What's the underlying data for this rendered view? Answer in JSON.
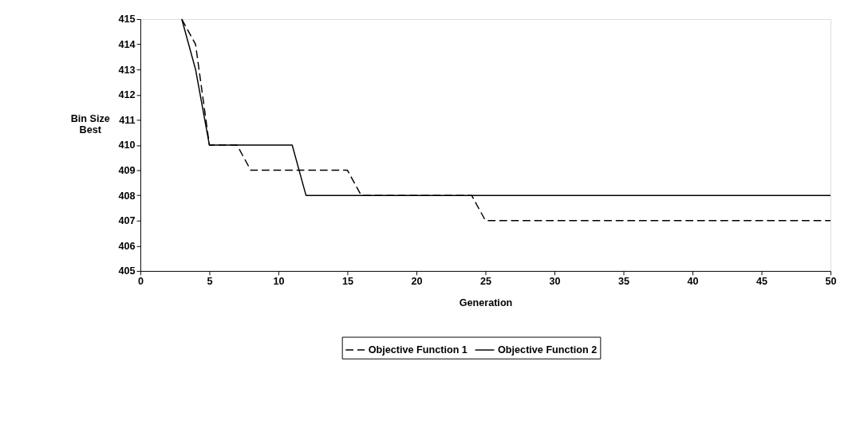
{
  "chart_data": {
    "type": "line",
    "xlabel": "Generation",
    "ylabel": "Bin Size Best",
    "xlim": [
      0,
      50
    ],
    "xticks": [
      0,
      5,
      10,
      15,
      20,
      25,
      30,
      35,
      40,
      45,
      50
    ],
    "ylim": [
      405,
      415
    ],
    "yticks": [
      405,
      406,
      407,
      408,
      409,
      410,
      411,
      412,
      413,
      414,
      415
    ],
    "grid": false,
    "legend": "bottom",
    "marker": "none",
    "series": [
      {
        "name": "Objective Function 1",
        "color": "#000000",
        "line_style": "dashed",
        "x": [
          3,
          4,
          5,
          7,
          8,
          15,
          16,
          24,
          25,
          50
        ],
        "values": [
          415,
          414,
          410,
          410,
          409,
          409,
          408,
          408,
          407,
          407
        ]
      },
      {
        "name": "Objective Function 2",
        "color": "#000000",
        "line_style": "solid",
        "x": [
          3,
          4,
          5,
          11,
          12,
          50
        ],
        "values": [
          415,
          413,
          410,
          410,
          408,
          408
        ]
      }
    ]
  }
}
